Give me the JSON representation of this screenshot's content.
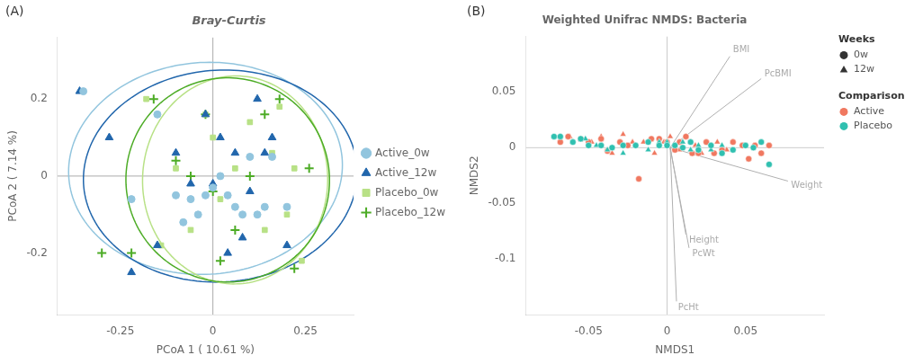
{
  "chart_data": [
    {
      "type": "scatter",
      "title": "Bray-Curtis",
      "xlabel": "PCoA 1 ( 10.61 %)",
      "ylabel": "PCoA 2 ( 7.14 %)",
      "annotations": [
        "(A)"
      ],
      "xlim": [
        -0.42,
        0.38
      ],
      "ylim": [
        -0.36,
        0.36
      ],
      "xticks": [
        -0.25,
        0,
        0.25
      ],
      "yticks": [
        -0.2,
        0,
        0.2
      ],
      "grid": false,
      "legend": "right",
      "reference_lines": {
        "x": [
          0
        ],
        "y": [
          0
        ],
        "color": "#aaaaaa"
      },
      "ellipses": [
        {
          "cx": -0.02,
          "cy": 0.02,
          "width": 0.74,
          "height": 0.55,
          "angle": 3,
          "color": "#92c5de"
        },
        {
          "cx": 0.02,
          "cy": 0.0,
          "width": 0.74,
          "height": 0.55,
          "angle": 3,
          "color": "#2166ac"
        },
        {
          "cx": 0.06,
          "cy": -0.01,
          "width": 0.5,
          "height": 0.54,
          "angle": -3,
          "color": "#b8e186"
        },
        {
          "cx": 0.04,
          "cy": -0.01,
          "width": 0.55,
          "height": 0.53,
          "angle": -3,
          "color": "#4dac26"
        }
      ],
      "series": [
        {
          "name": "Active_0w",
          "color": "#92c5de",
          "marker": "circle",
          "x": [
            -0.35,
            -0.22,
            -0.15,
            -0.1,
            -0.08,
            -0.06,
            -0.04,
            -0.02,
            0.0,
            0.02,
            0.04,
            0.06,
            0.08,
            0.1,
            0.12,
            0.14,
            0.16,
            0.2
          ],
          "values": [
            0.22,
            -0.06,
            0.16,
            -0.05,
            -0.12,
            -0.06,
            -0.1,
            -0.05,
            -0.03,
            0.0,
            -0.05,
            -0.08,
            -0.1,
            0.05,
            -0.1,
            -0.08,
            0.05,
            -0.08
          ]
        },
        {
          "name": "Active_12w",
          "color": "#2166ac",
          "marker": "triangle",
          "x": [
            -0.36,
            -0.28,
            -0.22,
            -0.15,
            -0.1,
            -0.06,
            -0.02,
            0.0,
            0.02,
            0.04,
            0.06,
            0.08,
            0.1,
            0.12,
            0.14,
            0.16,
            0.2
          ],
          "values": [
            0.22,
            0.1,
            -0.25,
            -0.18,
            0.06,
            -0.02,
            0.16,
            -0.02,
            0.1,
            -0.2,
            0.06,
            -0.16,
            -0.04,
            0.2,
            0.06,
            0.1,
            -0.18
          ]
        },
        {
          "name": "Placebo_0w",
          "color": "#b8e186",
          "marker": "square",
          "x": [
            -0.18,
            -0.14,
            -0.1,
            -0.06,
            -0.02,
            0.0,
            0.02,
            0.06,
            0.1,
            0.14,
            0.16,
            0.18,
            0.2,
            0.22,
            0.24
          ],
          "values": [
            0.2,
            -0.18,
            0.02,
            -0.14,
            0.16,
            0.1,
            -0.06,
            0.02,
            0.14,
            -0.14,
            0.06,
            0.18,
            -0.1,
            0.02,
            -0.22
          ]
        },
        {
          "name": "Placebo_12w",
          "color": "#4dac26",
          "marker": "plus",
          "x": [
            -0.3,
            -0.22,
            -0.16,
            -0.1,
            -0.06,
            -0.02,
            0.0,
            0.02,
            0.06,
            0.1,
            0.14,
            0.18,
            0.22,
            0.26
          ],
          "values": [
            -0.2,
            -0.2,
            0.2,
            0.04,
            0.0,
            0.16,
            -0.04,
            -0.22,
            -0.14,
            0.0,
            0.16,
            0.2,
            -0.24,
            0.02
          ]
        }
      ]
    },
    {
      "type": "scatter",
      "title": "Weighted Unifrac NMDS: Bacteria",
      "xlabel": "NMDS1",
      "ylabel": "NMDS2",
      "annotations": [
        "(B)"
      ],
      "xlim": [
        -0.09,
        0.1
      ],
      "ylim": [
        -0.15,
        0.1
      ],
      "xticks": [
        -0.05,
        0,
        0.05
      ],
      "yticks": [
        -0.1,
        -0.05,
        0,
        0.05
      ],
      "grid": false,
      "legend": "right",
      "reference_lines": {
        "x": [
          0
        ],
        "y": [
          0
        ],
        "color": "#cccccc"
      },
      "arrows": {
        "color": "#b0b0b0",
        "label_color": "#aaaaaa",
        "items": [
          {
            "label": "BMI",
            "x0": 0.002,
            "y0": 0.0,
            "x1": 0.04,
            "y1": 0.082,
            "label_x": 0.042,
            "label_y": 0.088
          },
          {
            "label": "PcBMI",
            "x0": 0.002,
            "y0": 0.0,
            "x1": 0.06,
            "y1": 0.062,
            "label_x": 0.062,
            "label_y": 0.066
          },
          {
            "label": "Weight",
            "x0": 0.002,
            "y0": 0.0,
            "x1": 0.077,
            "y1": -0.03,
            "label_x": 0.079,
            "label_y": -0.034
          },
          {
            "label": "Height",
            "x0": 0.002,
            "y0": 0.0,
            "x1": 0.012,
            "y1": -0.078,
            "label_x": 0.014,
            "label_y": -0.083
          },
          {
            "label": "PcWt",
            "x0": 0.002,
            "y0": 0.0,
            "x1": 0.014,
            "y1": -0.09,
            "label_x": 0.016,
            "label_y": -0.095
          },
          {
            "label": "PcHt",
            "x0": 0.002,
            "y0": 0.0,
            "x1": 0.006,
            "y1": -0.138,
            "label_x": 0.007,
            "label_y": -0.144
          }
        ]
      },
      "series": [
        {
          "color": "#30c0b0",
          "marker": "circle",
          "x": [
            -0.072,
            -0.068,
            -0.06,
            -0.055,
            -0.05,
            -0.042,
            -0.035,
            -0.028,
            -0.02,
            -0.012,
            -0.005,
            0.0,
            0.005,
            0.01,
            0.015,
            0.02,
            0.028,
            0.035,
            0.042,
            0.05,
            0.055,
            0.06,
            0.065
          ],
          "values": [
            0.01,
            0.01,
            0.005,
            0.008,
            0.002,
            0.002,
            0.0,
            0.002,
            0.002,
            0.005,
            0.002,
            0.002,
            0.002,
            0.0,
            0.005,
            -0.002,
            0.002,
            -0.005,
            -0.002,
            0.002,
            0.0,
            0.005,
            -0.015
          ]
        },
        {
          "color": "#30c0b0",
          "marker": "triangle",
          "x": [
            -0.068,
            -0.06,
            -0.052,
            -0.045,
            -0.038,
            -0.028,
            -0.02,
            -0.012,
            -0.005,
            0.0,
            0.005,
            0.01,
            0.015,
            0.02,
            0.028,
            0.035
          ],
          "values": [
            0.01,
            0.005,
            0.008,
            0.002,
            -0.002,
            -0.005,
            0.002,
            -0.002,
            0.005,
            0.005,
            0.002,
            0.005,
            -0.002,
            0.002,
            -0.002,
            0.002
          ]
        },
        {
          "color": "#f07860",
          "marker": "circle",
          "x": [
            -0.068,
            -0.063,
            -0.055,
            -0.05,
            -0.042,
            -0.038,
            -0.03,
            -0.025,
            -0.018,
            -0.01,
            -0.005,
            0.0,
            0.005,
            0.008,
            0.012,
            0.016,
            0.02,
            0.025,
            0.03,
            0.035,
            0.042,
            0.048,
            0.052,
            0.056,
            0.06,
            0.065
          ],
          "values": [
            0.005,
            0.01,
            0.008,
            0.005,
            0.008,
            -0.003,
            0.005,
            0.002,
            -0.028,
            0.008,
            0.008,
            0.005,
            -0.002,
            0.005,
            0.01,
            -0.005,
            -0.005,
            0.005,
            -0.005,
            -0.002,
            0.005,
            0.002,
            -0.01,
            0.002,
            -0.005,
            0.002
          ]
        },
        {
          "color": "#f07860",
          "marker": "triangle",
          "x": [
            -0.062,
            -0.055,
            -0.048,
            -0.042,
            -0.035,
            -0.028,
            -0.022,
            -0.015,
            -0.008,
            -0.002,
            0.002,
            0.008,
            0.012,
            0.015,
            0.018,
            0.022,
            0.028,
            0.032,
            0.038,
            0.042
          ],
          "values": [
            0.01,
            0.008,
            0.005,
            0.01,
            -0.005,
            0.012,
            0.005,
            0.005,
            -0.005,
            0.005,
            0.01,
            -0.002,
            0.01,
            0.005,
            0.002,
            -0.005,
            0.002,
            0.005,
            -0.002,
            0.005
          ]
        }
      ],
      "legend_sections": [
        {
          "title": "Weeks",
          "entries": [
            {
              "label": "0w",
              "marker": "circle",
              "color": "#333333"
            },
            {
              "label": "12w",
              "marker": "triangle",
              "color": "#333333"
            }
          ]
        },
        {
          "title": "Comparison",
          "entries": [
            {
              "label": "Active",
              "marker": "circle",
              "color": "#f07860"
            },
            {
              "label": "Placebo",
              "marker": "circle",
              "color": "#30c0b0"
            }
          ]
        }
      ]
    }
  ]
}
